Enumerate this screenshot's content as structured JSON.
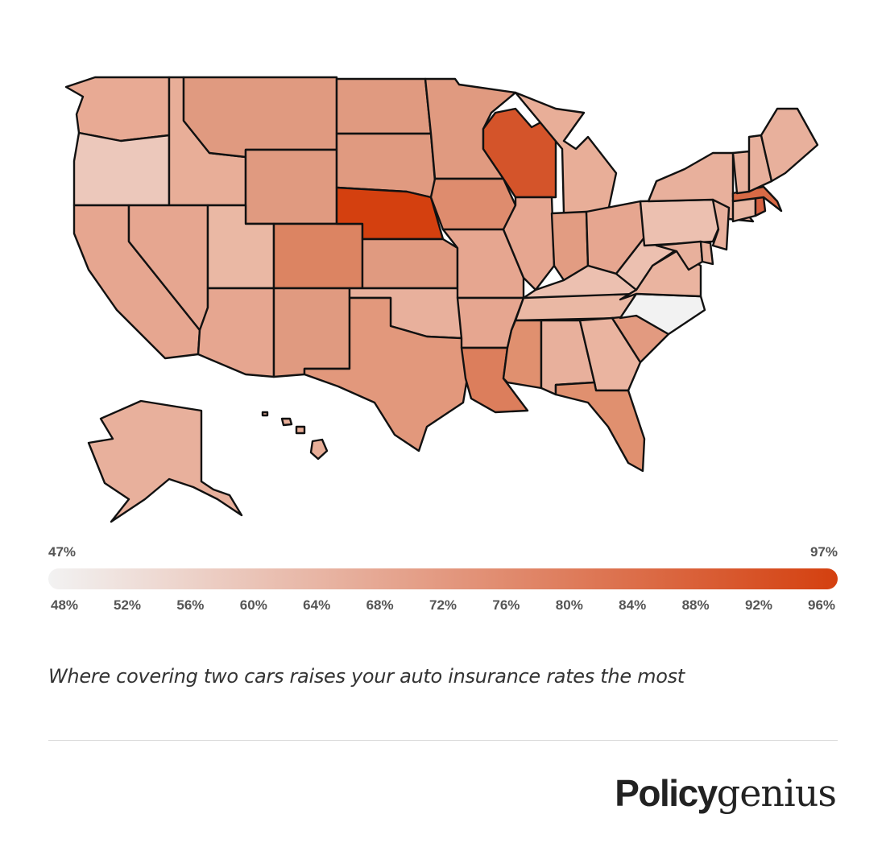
{
  "legend": {
    "min_label": "47%",
    "max_label": "97%",
    "ticks": [
      {
        "label": "48%",
        "value": 48
      },
      {
        "label": "52%",
        "value": 52
      },
      {
        "label": "56%",
        "value": 56
      },
      {
        "label": "60%",
        "value": 60
      },
      {
        "label": "64%",
        "value": 64
      },
      {
        "label": "68%",
        "value": 68
      },
      {
        "label": "72%",
        "value": 72
      },
      {
        "label": "76%",
        "value": 76
      },
      {
        "label": "80%",
        "value": 80
      },
      {
        "label": "84%",
        "value": 84
      },
      {
        "label": "88%",
        "value": 88
      },
      {
        "label": "92%",
        "value": 92
      },
      {
        "label": "96%",
        "value": 96
      }
    ],
    "range": [
      47,
      97
    ],
    "color_low": "#f2f2f2",
    "color_high": "#d4400f"
  },
  "caption": "Where covering two cars raises your auto insurance rates the most",
  "brand": {
    "part1": "Policy",
    "part2": "genius"
  },
  "map": {
    "stroke_color": "#111111",
    "states": [
      {
        "code": "WA",
        "color": "#e8aa94"
      },
      {
        "code": "OR",
        "color": "#ecc8bb"
      },
      {
        "code": "CA",
        "color": "#e6a690"
      },
      {
        "code": "ID",
        "color": "#e8ae98"
      },
      {
        "code": "NV",
        "color": "#e6a690"
      },
      {
        "code": "MT",
        "color": "#e09a80"
      },
      {
        "code": "WY",
        "color": "#e09a80"
      },
      {
        "code": "UT",
        "color": "#eab8a4"
      },
      {
        "code": "AZ",
        "color": "#e6a690"
      },
      {
        "code": "CO",
        "color": "#dc8462"
      },
      {
        "code": "NM",
        "color": "#e09a80"
      },
      {
        "code": "ND",
        "color": "#e09a80"
      },
      {
        "code": "SD",
        "color": "#e09a80"
      },
      {
        "code": "NE",
        "color": "#d4400f"
      },
      {
        "code": "KS",
        "color": "#e09a80"
      },
      {
        "code": "OK",
        "color": "#e8b09c"
      },
      {
        "code": "TX",
        "color": "#e2987c"
      },
      {
        "code": "MN",
        "color": "#e09a80"
      },
      {
        "code": "IA",
        "color": "#de8c6e"
      },
      {
        "code": "MO",
        "color": "#e6a690"
      },
      {
        "code": "AR",
        "color": "#e6a690"
      },
      {
        "code": "LA",
        "color": "#dc7e5c"
      },
      {
        "code": "WI",
        "color": "#d4542a"
      },
      {
        "code": "IL",
        "color": "#e6a690"
      },
      {
        "code": "MI",
        "color": "#e8ae98"
      },
      {
        "code": "IN",
        "color": "#e29c82"
      },
      {
        "code": "OH",
        "color": "#e6a690"
      },
      {
        "code": "KY",
        "color": "#ecc0b0"
      },
      {
        "code": "TN",
        "color": "#eab8a4"
      },
      {
        "code": "MS",
        "color": "#e0906f"
      },
      {
        "code": "AL",
        "color": "#e8b09c"
      },
      {
        "code": "GA",
        "color": "#eab4a0"
      },
      {
        "code": "FL",
        "color": "#e0906f"
      },
      {
        "code": "SC",
        "color": "#e29a80"
      },
      {
        "code": "NC",
        "color": "#f2f2f2"
      },
      {
        "code": "VA",
        "color": "#eab4a0"
      },
      {
        "code": "WV",
        "color": "#ecc0b0"
      },
      {
        "code": "PA",
        "color": "#ecc0b0"
      },
      {
        "code": "NY",
        "color": "#e8b09c"
      },
      {
        "code": "NJ",
        "color": "#e8b09c"
      },
      {
        "code": "MD",
        "color": "#e8b09c"
      },
      {
        "code": "DE",
        "color": "#e8b09c"
      },
      {
        "code": "CT",
        "color": "#eab8a4"
      },
      {
        "code": "RI",
        "color": "#d66040"
      },
      {
        "code": "MA",
        "color": "#d86a46"
      },
      {
        "code": "VT",
        "color": "#e8b09c"
      },
      {
        "code": "NH",
        "color": "#e8b09c"
      },
      {
        "code": "ME",
        "color": "#e8b09c"
      },
      {
        "code": "AK",
        "color": "#e8b09c"
      },
      {
        "code": "HI",
        "color": "#e8ae98"
      }
    ]
  }
}
